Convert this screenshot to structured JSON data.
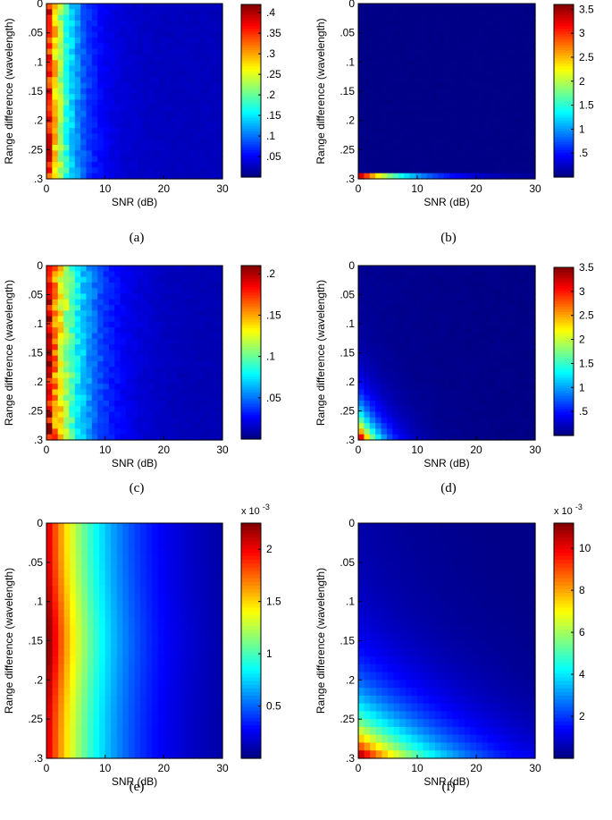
{
  "figure": {
    "captions": [
      "(a)",
      "(b)",
      "(c)",
      "(d)",
      "(e)",
      "(f)"
    ]
  },
  "chart_data": [
    {
      "type": "heatmap",
      "id": "a",
      "xlabel": "SNR (dB)",
      "ylabel": "Range difference (wavelength)",
      "x_ticks": [
        0,
        10,
        20,
        30
      ],
      "y_ticks": [
        0,
        0.05,
        0.1,
        0.15,
        0.2,
        0.25,
        0.3
      ],
      "xlim": [
        0,
        30
      ],
      "ylim": [
        0,
        0.3
      ],
      "y_direction": "down",
      "colormap": "jet",
      "colorbar_range": [
        0,
        0.42
      ],
      "colorbar_ticks": [
        0.05,
        0.1,
        0.15,
        0.2,
        0.25,
        0.3,
        0.35,
        0.4
      ],
      "colorbar_exponent": "",
      "grid": [
        31,
        31
      ],
      "pattern": "Decreases with SNR; peak about 0.42 at 0 dB, ~0.25 at 3 dB, ~0.12 at 7 dB, ~0.05 beyond 12 dB; roughly uniform across range difference with cell-level noise"
    },
    {
      "type": "heatmap",
      "id": "b",
      "xlabel": "SNR (dB)",
      "ylabel": "Range difference (wavelength)",
      "x_ticks": [
        0,
        10,
        20,
        30
      ],
      "y_ticks": [
        0,
        0.05,
        0.1,
        0.15,
        0.2,
        0.25,
        0.3
      ],
      "xlim": [
        0,
        30
      ],
      "ylim": [
        0,
        0.3
      ],
      "y_direction": "down",
      "colormap": "jet",
      "colorbar_range": [
        0,
        3.6
      ],
      "colorbar_ticks": [
        0.5,
        1,
        1.5,
        2,
        2.5,
        3,
        3.5
      ],
      "colorbar_exponent": "",
      "grid": [
        31,
        31
      ],
      "pattern": "Near zero everywhere except the last row (range difference 0.3): ~3.5 at 0 dB decreasing to ~1 at 10 dB and ~0.3 at 20 dB"
    },
    {
      "type": "heatmap",
      "id": "c",
      "xlabel": "SNR (dB)",
      "ylabel": "Range difference (wavelength)",
      "x_ticks": [
        0,
        10,
        20,
        30
      ],
      "y_ticks": [
        0,
        0.05,
        0.1,
        0.15,
        0.2,
        0.25,
        0.3
      ],
      "xlim": [
        0,
        30
      ],
      "ylim": [
        0,
        0.3
      ],
      "y_direction": "down",
      "colormap": "jet",
      "colorbar_range": [
        0,
        0.21
      ],
      "colorbar_ticks": [
        0.05,
        0.1,
        0.15,
        0.2
      ],
      "colorbar_exponent": "",
      "grid": [
        31,
        31
      ],
      "pattern": "Decreases with SNR; peak about 0.21 at 0 dB, ~0.12 at 4 dB, ~0.06 at 8 dB, ~0.02 beyond 15 dB; uniform across range difference with cell-level noise"
    },
    {
      "type": "heatmap",
      "id": "d",
      "xlabel": "SNR (dB)",
      "ylabel": "Range difference (wavelength)",
      "x_ticks": [
        0,
        10,
        20,
        30
      ],
      "y_ticks": [
        0,
        0.05,
        0.1,
        0.15,
        0.2,
        0.25,
        0.3
      ],
      "xlim": [
        0,
        30
      ],
      "ylim": [
        0,
        0.3
      ],
      "y_direction": "down",
      "colormap": "jet",
      "colorbar_range": [
        0,
        3.5
      ],
      "colorbar_ticks": [
        0.5,
        1,
        1.5,
        2,
        2.5,
        3,
        3.5
      ],
      "colorbar_exponent": "",
      "grid": [
        31,
        31
      ],
      "pattern": "Peak ~3.5 at range difference 0.3 and 0 dB; decays with SNR and with decreasing range difference; ~1 at (0.2, 0 dB), near zero at upper right"
    },
    {
      "type": "heatmap",
      "id": "e",
      "xlabel": "SNR (dB)",
      "ylabel": "Range difference (wavelength)",
      "x_ticks": [
        0,
        10,
        20,
        30
      ],
      "y_ticks": [
        0,
        0.05,
        0.1,
        0.15,
        0.2,
        0.25,
        0.3
      ],
      "xlim": [
        0,
        30
      ],
      "ylim": [
        0,
        0.3
      ],
      "y_direction": "down",
      "colormap": "jet",
      "colorbar_range": [
        0,
        0.00225
      ],
      "colorbar_ticks": [
        0.0005,
        0.001,
        0.0015,
        0.002
      ],
      "colorbar_labels": [
        "0.5",
        "1",
        "1.5",
        "2"
      ],
      "colorbar_exponent": "x 10",
      "colorbar_exponent_power": "-3",
      "grid": [
        30,
        30
      ],
      "pattern": "Smooth; max ~2.2e-3 at 0 dB near range difference 0.15, ~1.9e-3 at 0 dB at the ends, falling to ~0.8e-3 at 8 dB and ~0.1e-3 at 30 dB"
    },
    {
      "type": "heatmap",
      "id": "f",
      "xlabel": "SNR (dB)",
      "ylabel": "Range difference (wavelength)",
      "x_ticks": [
        0,
        10,
        20,
        30
      ],
      "y_ticks": [
        0,
        0.05,
        0.1,
        0.15,
        0.2,
        0.25,
        0.3
      ],
      "xlim": [
        0,
        30
      ],
      "ylim": [
        0,
        0.3
      ],
      "y_direction": "down",
      "colormap": "jet",
      "colorbar_range": [
        0,
        0.0112
      ],
      "colorbar_ticks": [
        0.002,
        0.004,
        0.006,
        0.008,
        0.01
      ],
      "colorbar_labels": [
        "2",
        "4",
        "6",
        "8",
        "10"
      ],
      "colorbar_exponent": "x 10",
      "colorbar_exponent_power": "-3",
      "grid": [
        30,
        30
      ],
      "pattern": "Smooth; max ~11e-3 at range difference 0.3 and 0 dB, ~7e-3 at (0.25, 0 dB), ~4e-3 at (0.2, 0 dB), decaying with SNR to ~0.3e-3 at upper right"
    }
  ]
}
